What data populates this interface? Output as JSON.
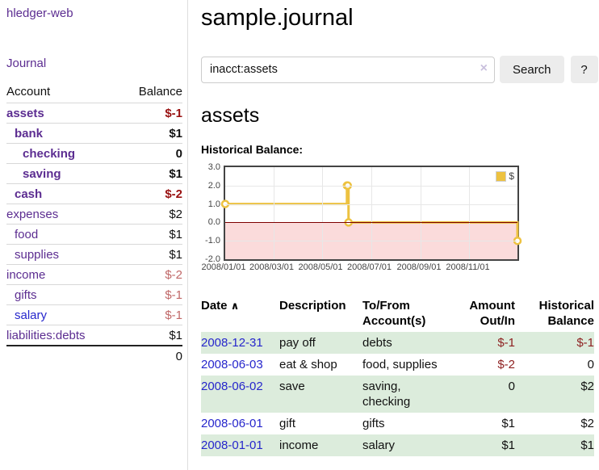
{
  "colors": {
    "link_purple": "#5c2d91",
    "link_blue": "#2626cc",
    "negative_strong": "#991111",
    "negative_soft": "#c06868",
    "register_negative": "#8d1f1f",
    "row_highlight_green": "#dcecdc",
    "chart_line_gold": "#edc240",
    "chart_negative_region": "#fbdbdb",
    "chart_zero_line": "#7d0000"
  },
  "sidebar": {
    "brand": "hledger-web",
    "nav": {
      "journal": "Journal"
    },
    "accounts_table": {
      "headers": {
        "account": "Account",
        "balance": "Balance"
      },
      "rows": [
        {
          "name": "assets",
          "depth": 0,
          "bold": true,
          "balance": "$-1",
          "negative": true,
          "blue": false
        },
        {
          "name": "bank",
          "depth": 1,
          "bold": true,
          "balance": "$1",
          "negative": false,
          "blue": false
        },
        {
          "name": "checking",
          "depth": 2,
          "bold": true,
          "balance": "0",
          "negative": false,
          "blue": false
        },
        {
          "name": "saving",
          "depth": 2,
          "bold": true,
          "balance": "$1",
          "negative": false,
          "blue": false
        },
        {
          "name": "cash",
          "depth": 1,
          "bold": true,
          "balance": "$-2",
          "negative": true,
          "blue": false
        },
        {
          "name": "expenses",
          "depth": 0,
          "bold": false,
          "balance": "$2",
          "negative": false,
          "blue": false
        },
        {
          "name": "food",
          "depth": 1,
          "bold": false,
          "balance": "$1",
          "negative": false,
          "blue": false
        },
        {
          "name": "supplies",
          "depth": 1,
          "bold": false,
          "balance": "$1",
          "negative": false,
          "blue": false
        },
        {
          "name": "income",
          "depth": 0,
          "bold": false,
          "balance": "$-2",
          "negative": true,
          "blue": false
        },
        {
          "name": "gifts",
          "depth": 1,
          "bold": false,
          "balance": "$-1",
          "negative": true,
          "blue": false
        },
        {
          "name": "salary",
          "depth": 1,
          "bold": false,
          "balance": "$-1",
          "negative": true,
          "blue": true
        },
        {
          "name": "liabilities:debts",
          "depth": 0,
          "bold": false,
          "balance": "$1",
          "negative": false,
          "blue": false
        }
      ],
      "total": "0"
    }
  },
  "header": {
    "title": "sample.journal"
  },
  "search": {
    "query": "inacct:assets",
    "clear_icon": "×",
    "button": "Search",
    "help_button": "?"
  },
  "account_page": {
    "title": "assets",
    "chart_label": "Historical Balance:"
  },
  "chart_data": {
    "type": "line",
    "title": "Historical Balance",
    "steps": true,
    "xlim": [
      0,
      365
    ],
    "ylim": [
      -2,
      3
    ],
    "yticks": [
      {
        "label": "3.0",
        "y": 3
      },
      {
        "label": "2.0",
        "y": 2
      },
      {
        "label": "1.0",
        "y": 1
      },
      {
        "label": "0.0",
        "y": 0
      },
      {
        "label": "-1.0",
        "y": -1
      },
      {
        "label": "-2.0",
        "y": -2
      }
    ],
    "xticks": [
      {
        "label": "2008/01/01",
        "x": 0
      },
      {
        "label": "2008/03/01",
        "x": 60
      },
      {
        "label": "2008/05/01",
        "x": 121
      },
      {
        "label": "2008/07/01",
        "x": 182
      },
      {
        "label": "2008/09/01",
        "x": 244
      },
      {
        "label": "2008/11/01",
        "x": 305
      }
    ],
    "series": [
      {
        "name": "$",
        "points": [
          {
            "date": "2008-01-01",
            "x": 0,
            "y": 1
          },
          {
            "date": "2008-06-01",
            "x": 152,
            "y": 2
          },
          {
            "date": "2008-06-02",
            "x": 153,
            "y": 2
          },
          {
            "date": "2008-06-03",
            "x": 154,
            "y": 0
          },
          {
            "date": "2008-12-31",
            "x": 365,
            "y": -1
          }
        ]
      }
    ],
    "legend_position": "top-right",
    "grid": true,
    "negative_region": true
  },
  "register": {
    "sort_icon": "∧",
    "headers": {
      "date": "Date",
      "description": "Description",
      "tofrom": "To/From Account(s)",
      "amount": "Amount Out/In",
      "balance": "Historical Balance"
    },
    "rows": [
      {
        "date": "2008-12-31",
        "description": "pay off",
        "tofrom": "debts",
        "amount": "$-1",
        "amount_negative": true,
        "balance": "$-1",
        "balance_negative": true,
        "highlight": true
      },
      {
        "date": "2008-06-03",
        "description": "eat & shop",
        "tofrom": "food, supplies",
        "amount": "$-2",
        "amount_negative": true,
        "balance": "0",
        "balance_negative": false,
        "highlight": false
      },
      {
        "date": "2008-06-02",
        "description": "save",
        "tofrom": "saving, checking",
        "amount": "0",
        "amount_negative": false,
        "balance": "$2",
        "balance_negative": false,
        "highlight": true
      },
      {
        "date": "2008-06-01",
        "description": "gift",
        "tofrom": "gifts",
        "amount": "$1",
        "amount_negative": false,
        "balance": "$2",
        "balance_negative": false,
        "highlight": false
      },
      {
        "date": "2008-01-01",
        "description": "income",
        "tofrom": "salary",
        "amount": "$1",
        "amount_negative": false,
        "balance": "$1",
        "balance_negative": false,
        "highlight": true
      }
    ]
  }
}
